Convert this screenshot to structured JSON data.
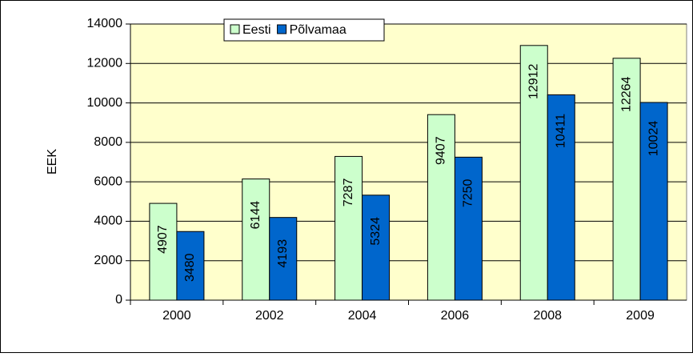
{
  "chart_data": {
    "type": "bar",
    "y_label": "EEK",
    "categories": [
      "2000",
      "2002",
      "2004",
      "2006",
      "2008",
      "2009"
    ],
    "series": [
      {
        "name": "Eesti",
        "color": "#ccffcc",
        "values": [
          4907,
          6144,
          7287,
          9407,
          12912,
          12264
        ]
      },
      {
        "name": "Põlvamaa",
        "color": "#0066cc",
        "values": [
          3480,
          4193,
          5324,
          7250,
          10411,
          10024
        ]
      }
    ],
    "ylim": [
      0,
      14000
    ],
    "yticks": [
      0,
      2000,
      4000,
      6000,
      8000,
      10000,
      12000,
      14000
    ],
    "grid": true,
    "plot_background": "#ffffcc",
    "legend": "top"
  }
}
